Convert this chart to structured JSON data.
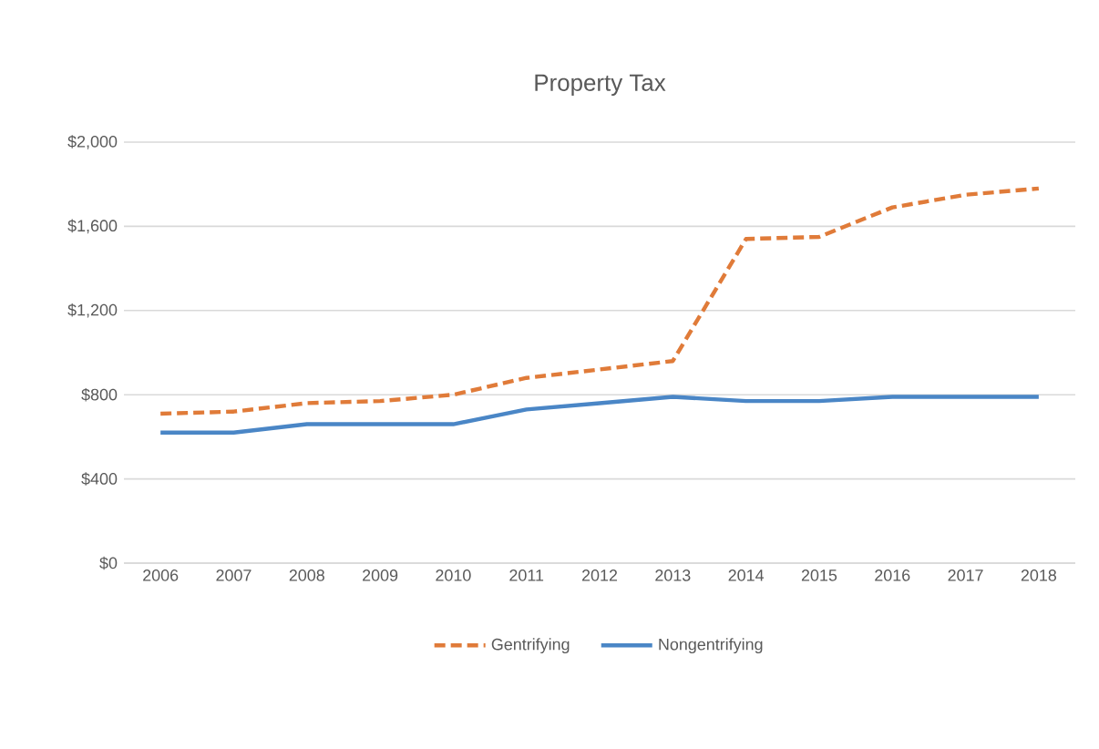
{
  "chart_data": {
    "type": "line",
    "title": "Property Tax",
    "categories": [
      "2006",
      "2007",
      "2008",
      "2009",
      "2010",
      "2011",
      "2012",
      "2013",
      "2014",
      "2015",
      "2016",
      "2017",
      "2018"
    ],
    "series": [
      {
        "name": "Gentrifying",
        "color": "#e07b39",
        "line_style": "dashed",
        "values": [
          710,
          720,
          760,
          770,
          800,
          880,
          920,
          960,
          1540,
          1550,
          1690,
          1750,
          1780
        ]
      },
      {
        "name": "Nongentrifying",
        "color": "#4a86c6",
        "line_style": "solid",
        "values": [
          620,
          620,
          660,
          660,
          660,
          730,
          760,
          790,
          770,
          770,
          790,
          790,
          790
        ]
      }
    ],
    "ylim": [
      0,
      2000
    ],
    "yticks": [
      {
        "value": 0,
        "label": "$0"
      },
      {
        "value": 400,
        "label": "$400"
      },
      {
        "value": 800,
        "label": "$800"
      },
      {
        "value": 1200,
        "label": "$1,200"
      },
      {
        "value": 1600,
        "label": "$1,600"
      },
      {
        "value": 2000,
        "label": "$2,000"
      }
    ],
    "grid": "y",
    "legend": "bottom",
    "marker": "none"
  }
}
